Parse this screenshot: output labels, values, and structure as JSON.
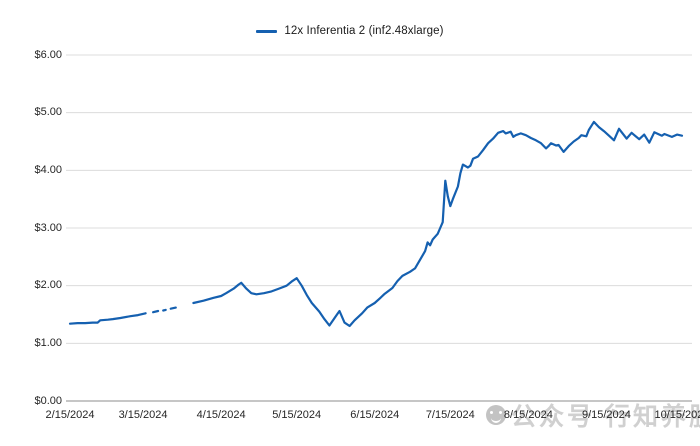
{
  "legend": {
    "label": "12x Inferentia 2 (inf2.48xlarge)"
  },
  "watermark": {
    "icon": "smiley-logo",
    "text": "公众号  行知养股"
  },
  "colors": {
    "line": "#1560b0",
    "grid": "#dcdcdc",
    "axis": "#8c8c8c",
    "text": "#262626",
    "watermark": "#d0d0d0",
    "background": "#ffffff"
  },
  "chart_data": {
    "type": "line",
    "title": "",
    "xlabel": "",
    "ylabel": "",
    "ylim": [
      0,
      6
    ],
    "ytick_step": 1,
    "grid": "horizontal-only",
    "legend_position": "top-center",
    "y_tick_labels": [
      "$0.00",
      "$1.00",
      "$2.00",
      "$3.00",
      "$4.00",
      "$5.00",
      "$6.00"
    ],
    "x_tick_labels": [
      "2/15/2024",
      "3/15/2024",
      "4/15/2024",
      "5/15/2024",
      "6/15/2024",
      "7/15/2024",
      "8/15/2024",
      "9/15/2024",
      "10/15/2024"
    ],
    "x_range": [
      "2024-02-15",
      "2024-10-15"
    ],
    "series": [
      {
        "name": "12x Inferentia 2 (inf2.48xlarge)",
        "color": "#1560b0",
        "unit": "$ per hour",
        "segments": [
          [
            {
              "d": "2024-02-15",
              "v": 1.34
            },
            {
              "d": "2024-02-18",
              "v": 1.35
            },
            {
              "d": "2024-02-21",
              "v": 1.35
            },
            {
              "d": "2024-02-24",
              "v": 1.36
            },
            {
              "d": "2024-02-26",
              "v": 1.36
            },
            {
              "d": "2024-02-27",
              "v": 1.4
            },
            {
              "d": "2024-03-01",
              "v": 1.41
            },
            {
              "d": "2024-03-03",
              "v": 1.42
            },
            {
              "d": "2024-03-06",
              "v": 1.44
            },
            {
              "d": "2024-03-10",
              "v": 1.47
            },
            {
              "d": "2024-03-13",
              "v": 1.49
            },
            {
              "d": "2024-03-16",
              "v": 1.52
            }
          ],
          [
            {
              "d": "2024-03-19",
              "v": 1.54
            },
            {
              "d": "2024-03-21",
              "v": 1.56
            }
          ],
          [
            {
              "d": "2024-03-23",
              "v": 1.57
            },
            {
              "d": "2024-03-24",
              "v": 1.58
            }
          ],
          [
            {
              "d": "2024-03-26",
              "v": 1.6
            },
            {
              "d": "2024-03-28",
              "v": 1.62
            }
          ],
          [
            {
              "d": "2024-04-04",
              "v": 1.7
            },
            {
              "d": "2024-04-08",
              "v": 1.74
            },
            {
              "d": "2024-04-12",
              "v": 1.79
            },
            {
              "d": "2024-04-15",
              "v": 1.82
            },
            {
              "d": "2024-04-17",
              "v": 1.87
            },
            {
              "d": "2024-04-20",
              "v": 1.95
            },
            {
              "d": "2024-04-22",
              "v": 2.02
            },
            {
              "d": "2024-04-23",
              "v": 2.05
            },
            {
              "d": "2024-04-25",
              "v": 1.95
            },
            {
              "d": "2024-04-27",
              "v": 1.87
            },
            {
              "d": "2024-04-29",
              "v": 1.85
            },
            {
              "d": "2024-05-02",
              "v": 1.87
            },
            {
              "d": "2024-05-05",
              "v": 1.9
            },
            {
              "d": "2024-05-08",
              "v": 1.95
            },
            {
              "d": "2024-05-11",
              "v": 2.0
            },
            {
              "d": "2024-05-13",
              "v": 2.07
            },
            {
              "d": "2024-05-15",
              "v": 2.13
            },
            {
              "d": "2024-05-17",
              "v": 2.0
            },
            {
              "d": "2024-05-19",
              "v": 1.84
            },
            {
              "d": "2024-05-21",
              "v": 1.7
            },
            {
              "d": "2024-05-24",
              "v": 1.55
            },
            {
              "d": "2024-05-26",
              "v": 1.42
            },
            {
              "d": "2024-05-28",
              "v": 1.31
            },
            {
              "d": "2024-05-31",
              "v": 1.5
            },
            {
              "d": "2024-06-01",
              "v": 1.56
            },
            {
              "d": "2024-06-03",
              "v": 1.36
            },
            {
              "d": "2024-06-05",
              "v": 1.3
            },
            {
              "d": "2024-06-07",
              "v": 1.4
            },
            {
              "d": "2024-06-10",
              "v": 1.52
            },
            {
              "d": "2024-06-12",
              "v": 1.62
            },
            {
              "d": "2024-06-15",
              "v": 1.7
            },
            {
              "d": "2024-06-17",
              "v": 1.78
            },
            {
              "d": "2024-06-19",
              "v": 1.86
            },
            {
              "d": "2024-06-22",
              "v": 1.96
            },
            {
              "d": "2024-06-24",
              "v": 2.08
            },
            {
              "d": "2024-06-26",
              "v": 2.17
            },
            {
              "d": "2024-06-29",
              "v": 2.24
            },
            {
              "d": "2024-07-01",
              "v": 2.3
            },
            {
              "d": "2024-07-03",
              "v": 2.45
            },
            {
              "d": "2024-07-05",
              "v": 2.6
            },
            {
              "d": "2024-07-06",
              "v": 2.75
            },
            {
              "d": "2024-07-07",
              "v": 2.7
            },
            {
              "d": "2024-07-08",
              "v": 2.8
            },
            {
              "d": "2024-07-10",
              "v": 2.9
            },
            {
              "d": "2024-07-11",
              "v": 3.0
            },
            {
              "d": "2024-07-12",
              "v": 3.1
            },
            {
              "d": "2024-07-13",
              "v": 3.82
            },
            {
              "d": "2024-07-14",
              "v": 3.55
            },
            {
              "d": "2024-07-15",
              "v": 3.38
            },
            {
              "d": "2024-07-16",
              "v": 3.5
            },
            {
              "d": "2024-07-18",
              "v": 3.72
            },
            {
              "d": "2024-07-19",
              "v": 3.95
            },
            {
              "d": "2024-07-20",
              "v": 4.1
            },
            {
              "d": "2024-07-22",
              "v": 4.05
            },
            {
              "d": "2024-07-23",
              "v": 4.08
            },
            {
              "d": "2024-07-24",
              "v": 4.2
            },
            {
              "d": "2024-07-26",
              "v": 4.24
            },
            {
              "d": "2024-07-28",
              "v": 4.35
            },
            {
              "d": "2024-07-30",
              "v": 4.47
            },
            {
              "d": "2024-08-01",
              "v": 4.55
            },
            {
              "d": "2024-08-03",
              "v": 4.65
            },
            {
              "d": "2024-08-05",
              "v": 4.68
            },
            {
              "d": "2024-08-06",
              "v": 4.64
            },
            {
              "d": "2024-08-08",
              "v": 4.67
            },
            {
              "d": "2024-08-09",
              "v": 4.58
            },
            {
              "d": "2024-08-10",
              "v": 4.61
            },
            {
              "d": "2024-08-12",
              "v": 4.64
            },
            {
              "d": "2024-08-14",
              "v": 4.61
            },
            {
              "d": "2024-08-16",
              "v": 4.56
            },
            {
              "d": "2024-08-18",
              "v": 4.52
            },
            {
              "d": "2024-08-20",
              "v": 4.47
            },
            {
              "d": "2024-08-22",
              "v": 4.38
            },
            {
              "d": "2024-08-23",
              "v": 4.42
            },
            {
              "d": "2024-08-24",
              "v": 4.47
            },
            {
              "d": "2024-08-26",
              "v": 4.43
            },
            {
              "d": "2024-08-27",
              "v": 4.44
            },
            {
              "d": "2024-08-29",
              "v": 4.32
            },
            {
              "d": "2024-08-31",
              "v": 4.42
            },
            {
              "d": "2024-09-02",
              "v": 4.5
            },
            {
              "d": "2024-09-04",
              "v": 4.56
            },
            {
              "d": "2024-09-05",
              "v": 4.61
            },
            {
              "d": "2024-09-07",
              "v": 4.59
            },
            {
              "d": "2024-09-08",
              "v": 4.7
            },
            {
              "d": "2024-09-10",
              "v": 4.84
            },
            {
              "d": "2024-09-12",
              "v": 4.75
            },
            {
              "d": "2024-09-14",
              "v": 4.68
            },
            {
              "d": "2024-09-16",
              "v": 4.6
            },
            {
              "d": "2024-09-18",
              "v": 4.52
            },
            {
              "d": "2024-09-20",
              "v": 4.72
            },
            {
              "d": "2024-09-23",
              "v": 4.55
            },
            {
              "d": "2024-09-25",
              "v": 4.65
            },
            {
              "d": "2024-09-28",
              "v": 4.54
            },
            {
              "d": "2024-09-30",
              "v": 4.62
            },
            {
              "d": "2024-10-02",
              "v": 4.48
            },
            {
              "d": "2024-10-04",
              "v": 4.66
            },
            {
              "d": "2024-10-07",
              "v": 4.6
            },
            {
              "d": "2024-10-08",
              "v": 4.63
            },
            {
              "d": "2024-10-11",
              "v": 4.58
            },
            {
              "d": "2024-10-13",
              "v": 4.62
            },
            {
              "d": "2024-10-15",
              "v": 4.6
            }
          ]
        ]
      }
    ]
  }
}
